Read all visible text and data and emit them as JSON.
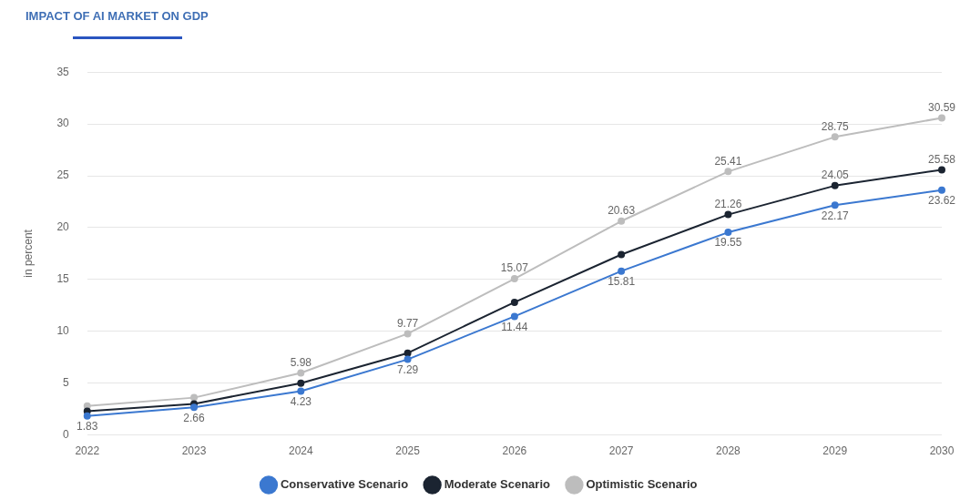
{
  "chart_data": {
    "type": "line",
    "title": "IMPACT OF AI MARKET ON GDP",
    "ylabel": "in percent",
    "categories": [
      "2022",
      "2023",
      "2024",
      "2025",
      "2026",
      "2027",
      "2028",
      "2029",
      "2030"
    ],
    "series": [
      {
        "name": "Conservative Scenario",
        "color": "#3b78d0",
        "values": [
          1.83,
          2.66,
          4.23,
          7.29,
          11.44,
          15.81,
          19.55,
          22.17,
          23.62
        ],
        "value_labels": [
          "1.83",
          "2.66",
          "4.23",
          "7.29",
          "11.44",
          "15.81",
          "19.55",
          "22.17",
          "23.62"
        ]
      },
      {
        "name": "Moderate Scenario",
        "color": "#1b2431",
        "values": [
          2.3,
          3.0,
          5.0,
          7.9,
          12.8,
          17.4,
          21.26,
          24.05,
          25.58
        ],
        "value_labels": [
          null,
          null,
          null,
          null,
          null,
          null,
          "21.26",
          "24.05",
          "25.58"
        ]
      },
      {
        "name": "Optimistic Scenario",
        "color": "#bdbdbd",
        "values": [
          2.8,
          3.6,
          5.98,
          9.77,
          15.07,
          20.63,
          25.41,
          28.75,
          30.59
        ],
        "value_labels": [
          null,
          null,
          "5.98",
          "9.77",
          "15.07",
          "20.63",
          "25.41",
          "28.75",
          "30.59"
        ]
      }
    ],
    "ylim": [
      0,
      35
    ],
    "yticks": [
      0,
      5,
      10,
      15,
      20,
      25,
      30,
      35
    ],
    "grid": "y",
    "legend": "bottom",
    "marker": "circle",
    "line_style": "solid"
  }
}
